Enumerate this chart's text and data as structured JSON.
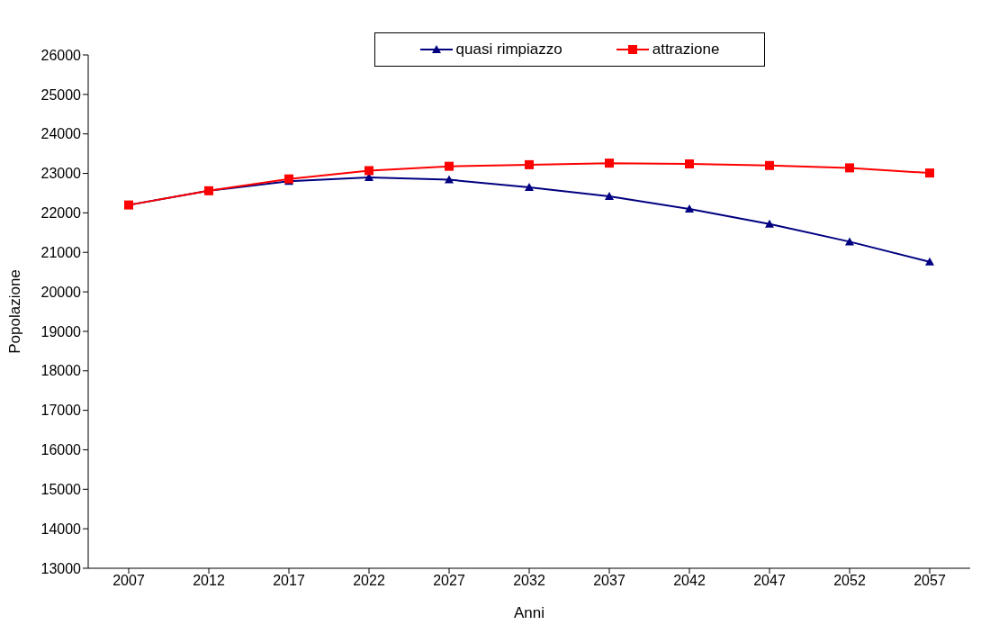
{
  "chart_data": {
    "type": "line",
    "xlabel": "Anni",
    "ylabel": "Popolazione",
    "categories": [
      "2007",
      "2012",
      "2017",
      "2022",
      "2027",
      "2032",
      "2037",
      "2042",
      "2047",
      "2052",
      "2057"
    ],
    "series": [
      {
        "name": "quasi rimpiazzo",
        "color": "#000080",
        "marker": "triangle",
        "values": [
          22200,
          22560,
          22800,
          22900,
          22840,
          22650,
          22420,
          22100,
          21720,
          21270,
          20760
        ]
      },
      {
        "name": "attrazione",
        "color": "#ff0000",
        "marker": "square",
        "values": [
          22200,
          22560,
          22860,
          23070,
          23180,
          23220,
          23260,
          23240,
          23200,
          23140,
          23010
        ]
      }
    ],
    "ylim": [
      13000,
      26000
    ],
    "yticks": [
      13000,
      14000,
      15000,
      16000,
      17000,
      18000,
      19000,
      20000,
      21000,
      22000,
      23000,
      24000,
      25000,
      26000
    ],
    "grid": false,
    "legend": "top"
  }
}
